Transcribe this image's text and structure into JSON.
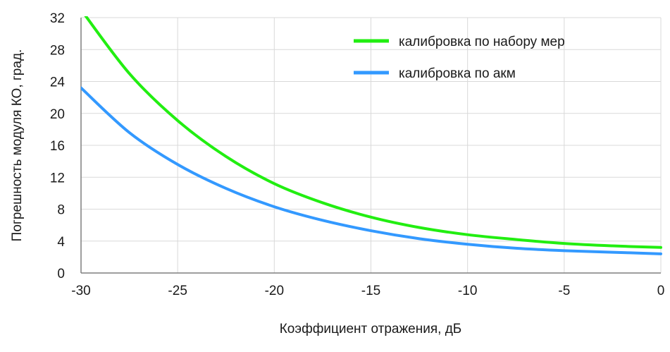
{
  "chart_data": {
    "type": "line",
    "title": "",
    "xlabel": "Коэффициент отражения, дБ",
    "ylabel": "Погрешность модуля КО, град.",
    "xlim": [
      -30,
      0
    ],
    "ylim": [
      0,
      32
    ],
    "xticks": [
      -30,
      -25,
      -20,
      -15,
      -10,
      -5,
      0
    ],
    "yticks": [
      0,
      4,
      8,
      12,
      16,
      20,
      24,
      28,
      32
    ],
    "grid": true,
    "legend_position": "top-right",
    "x": [
      -30,
      -27.5,
      -25,
      -22.5,
      -20,
      -17.5,
      -15,
      -12.5,
      -10,
      -7.5,
      -5,
      -2.5,
      0
    ],
    "series": [
      {
        "name": "калибровка по набору мер",
        "color": "#22ee11",
        "values": [
          33.0,
          25.0,
          19.1,
          14.6,
          11.2,
          8.8,
          7.0,
          5.7,
          4.8,
          4.2,
          3.7,
          3.4,
          3.2
        ]
      },
      {
        "name": "калибровка по акм",
        "color": "#3399ff",
        "values": [
          23.2,
          17.6,
          13.6,
          10.6,
          8.3,
          6.6,
          5.3,
          4.3,
          3.6,
          3.1,
          2.8,
          2.6,
          2.4
        ]
      }
    ]
  }
}
